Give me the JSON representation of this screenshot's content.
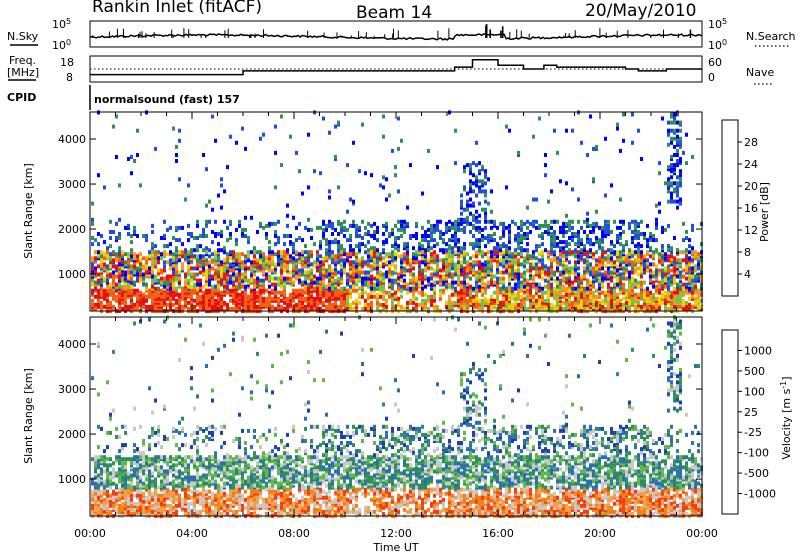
{
  "header": {
    "station": "Rankin Inlet (fitACF)",
    "beam": "Beam 14",
    "date": "20/May/2010"
  },
  "nsky_panel": {
    "left_label": "N.Sky",
    "right_label": "N.Search",
    "left_ticks": [
      "10^5",
      "10^0"
    ],
    "right_ticks": [
      "10^5",
      "10^0"
    ]
  },
  "freq_panel": {
    "left_label_line1": "Freq.",
    "left_label_line2": "[MHz]",
    "right_label": "Nave",
    "left_ticks": [
      "18",
      "8"
    ],
    "right_ticks": [
      "60",
      "0"
    ]
  },
  "cpid_panel": {
    "left_label": "CPID",
    "mode_text": "normalsound (fast) 157"
  },
  "chart_data": [
    {
      "type": "line",
      "title": "N.Sky / N.Search",
      "x_range_hours": [
        0,
        24
      ],
      "series": [
        {
          "name": "N.Sky",
          "style": "solid"
        },
        {
          "name": "N.Search",
          "style": "dotted"
        }
      ]
    },
    {
      "type": "line",
      "title": "Freq. / Nave",
      "x": [
        0,
        5,
        6,
        10,
        12,
        14,
        14.3,
        15,
        15.5,
        16,
        17,
        17.8,
        18.3,
        20,
        21,
        21.5,
        22.6,
        24
      ],
      "series": [
        {
          "name": "Freq. [MHz]",
          "values": [
            10,
            10,
            12,
            12,
            12,
            12,
            14,
            18,
            18,
            15,
            13,
            15,
            14,
            14,
            13,
            12,
            13,
            13
          ]
        },
        {
          "name": "Nave",
          "style": "dotted",
          "values": [
            30,
            30,
            30,
            30,
            30,
            30,
            30,
            30,
            30,
            30,
            30,
            30,
            30,
            30,
            30,
            30,
            30,
            30
          ]
        }
      ]
    },
    {
      "type": "heatmap",
      "ylabel": "Slant Range [km]",
      "xlabel": "Time UT",
      "xlim": [
        0,
        24
      ],
      "ylim": [
        180,
        4600
      ],
      "yticks": [
        "1000",
        "2000",
        "3000",
        "4000"
      ],
      "xticks": [
        "00:00",
        "04:00",
        "08:00",
        "12:00",
        "16:00",
        "20:00",
        "00:00"
      ],
      "colorbar": {
        "label": "Power [dB]",
        "ticks": [
          "4",
          "8",
          "12",
          "16",
          "20",
          "24",
          "28"
        ],
        "colors": [
          "#0000ff",
          "#1f4fd8",
          "#2f8f5a",
          "#74c24a",
          "#f0d000",
          "#f59a1a",
          "#f56010",
          "#e51010"
        ]
      }
    },
    {
      "type": "heatmap",
      "ylabel": "Slant Range [km]",
      "xlabel": "Time UT",
      "xlim": [
        0,
        24
      ],
      "ylim": [
        180,
        4600
      ],
      "yticks": [
        "1000",
        "2000",
        "3000",
        "4000"
      ],
      "xticks": [
        "00:00",
        "04:00",
        "08:00",
        "12:00",
        "16:00",
        "20:00",
        "00:00"
      ],
      "colorbar": {
        "label": "Velocity [m s^-1]",
        "ticks": [
          "1000",
          "500",
          "100",
          "25",
          "-25",
          "-100",
          "-500",
          "-1000"
        ],
        "colors": [
          "#1f3fb0",
          "#2a6fb0",
          "#2f8f5a",
          "#5fb84a",
          "#c8c8c8",
          "#f5a050",
          "#f58010",
          "#f04010",
          "#e00000"
        ]
      }
    }
  ],
  "time_axis": {
    "xlabel": "Time UT",
    "ticks": [
      "00:00",
      "04:00",
      "08:00",
      "12:00",
      "16:00",
      "20:00",
      "00:00"
    ]
  }
}
